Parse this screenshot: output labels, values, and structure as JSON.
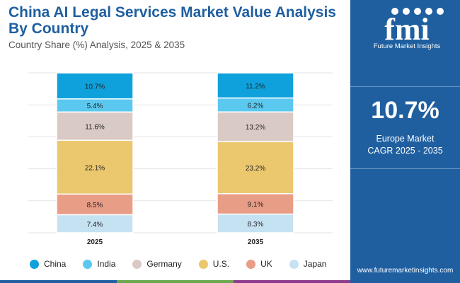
{
  "header": {
    "title": "China AI Legal Services Market Value Analysis By Country",
    "subtitle": "Country Share (%) Analysis, 2025 & 2035"
  },
  "side_panel": {
    "logo_text": "fmi",
    "logo_tagline": "Future Market Insights",
    "headline_value": "10.7%",
    "metric_line1": "Europe Market",
    "metric_line2": "CAGR 2025 - 2035",
    "website": "www.futuremarketinsights.com"
  },
  "colors": {
    "brand_blue": "#1f5fa0",
    "China": "#0ea1dc",
    "India": "#5bc8ef",
    "Germany": "#d9cac5",
    "U.S.": "#ebc76e",
    "UK": "#e89d86",
    "Japan": "#c5e2f3"
  },
  "chart_data": {
    "type": "bar",
    "stacked": true,
    "categories": [
      "2025",
      "2035"
    ],
    "series": [
      {
        "name": "China",
        "values": [
          10.7,
          11.2
        ],
        "labels": [
          "10.7%",
          "11.2%"
        ]
      },
      {
        "name": "India",
        "values": [
          5.4,
          6.2
        ],
        "labels": [
          "5.4%",
          "6.2%"
        ]
      },
      {
        "name": "Germany",
        "values": [
          11.6,
          13.2
        ],
        "labels": [
          "11.6%",
          "13.2%"
        ]
      },
      {
        "name": "U.S.",
        "values": [
          22.1,
          23.2
        ],
        "labels": [
          "22.1%",
          "23.2%"
        ]
      },
      {
        "name": "UK",
        "values": [
          8.5,
          9.1
        ],
        "labels": [
          "8.5%",
          "9.1%"
        ]
      },
      {
        "name": "Japan",
        "values": [
          7.4,
          8.3
        ],
        "labels": [
          "7.4%",
          "8.3%"
        ]
      }
    ],
    "legend_position": "bottom",
    "grid": true
  }
}
